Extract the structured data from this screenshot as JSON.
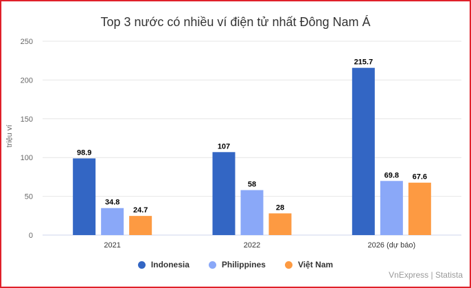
{
  "chart_data": {
    "type": "bar",
    "title": "Top 3 nước có nhiều ví điện tử nhất Đông Nam Á",
    "xlabel": "",
    "ylabel": "triệu ví",
    "ylim": [
      0,
      250
    ],
    "yticks": [
      0,
      50,
      100,
      150,
      200,
      250
    ],
    "grid": true,
    "legend_position": "bottom",
    "categories": [
      "2021",
      "2022",
      "2026 (dự báo)"
    ],
    "series": [
      {
        "name": "Indonesia",
        "color": "#3366c4",
        "values": [
          98.9,
          107,
          215.7
        ],
        "labels": [
          "98.9",
          "107",
          "215.7"
        ]
      },
      {
        "name": "Philippines",
        "color": "#8aa8f8",
        "values": [
          34.8,
          58,
          69.8
        ],
        "labels": [
          "34.8",
          "58",
          "69.8"
        ]
      },
      {
        "name": "Việt Nam",
        "color": "#fd9a42",
        "values": [
          24.7,
          28,
          67.6
        ],
        "labels": [
          "24.7",
          "28",
          "67.6"
        ]
      }
    ]
  },
  "credits": "VnExpress | Statista"
}
